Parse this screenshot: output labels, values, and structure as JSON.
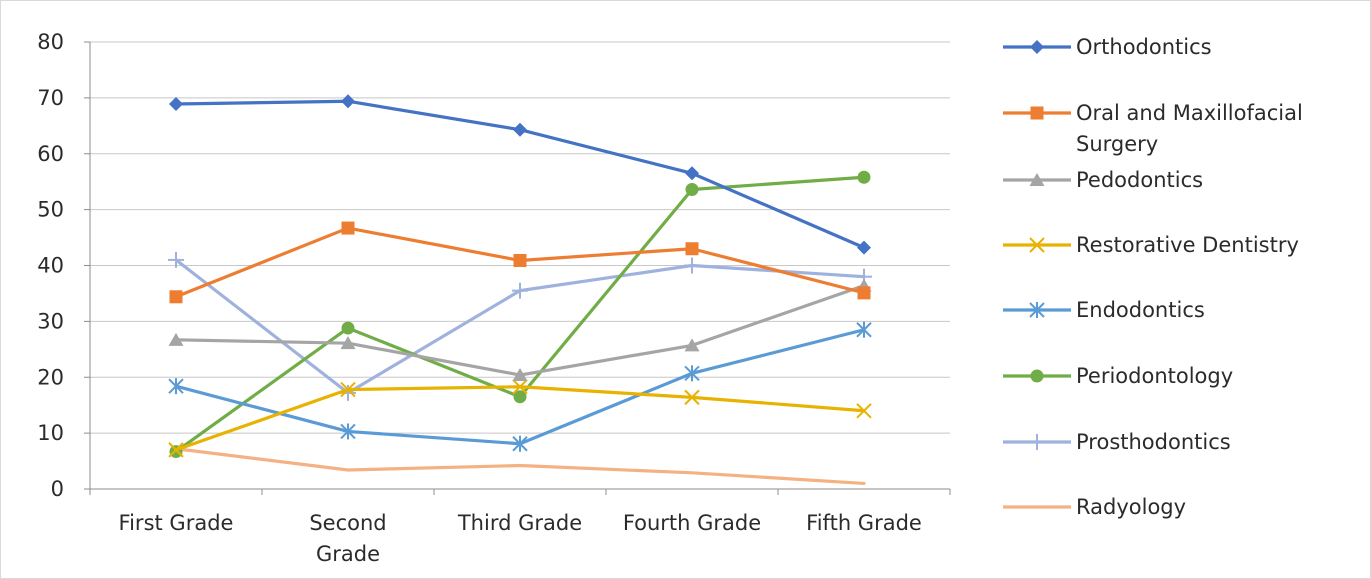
{
  "chart_data": {
    "type": "line",
    "title": "",
    "xlabel": "",
    "ylabel": "",
    "categories": [
      "First Grade",
      "Second Grade",
      "Third Grade",
      "Fourth Grade",
      "Fifth Grade"
    ],
    "category_lines": [
      [
        "First Grade"
      ],
      [
        "Second",
        "Grade"
      ],
      [
        "Third Grade"
      ],
      [
        "Fourth Grade"
      ],
      [
        "Fifth Grade"
      ]
    ],
    "ylim": [
      0,
      80
    ],
    "y_ticks": [
      "0",
      "10",
      "20",
      "30",
      "40",
      "50",
      "60",
      "70",
      "80"
    ],
    "grid": true,
    "legend_position": "right",
    "series": [
      {
        "name": "Orthodontics",
        "name_lines": [
          "Orthodontics"
        ],
        "color": "#4472c4",
        "marker": "diamond",
        "values": [
          68.9,
          69.4,
          64.3,
          56.5,
          43.2
        ]
      },
      {
        "name": "Oral and Maxillofacial Surgery",
        "name_lines": [
          "Oral and Maxillofacial",
          "Surgery"
        ],
        "color": "#ed7d31",
        "marker": "square",
        "values": [
          34.4,
          46.7,
          40.9,
          43.0,
          35.1
        ]
      },
      {
        "name": "Pedodontics",
        "name_lines": [
          "Pedodontics"
        ],
        "color": "#a5a5a5",
        "marker": "triangle",
        "values": [
          26.7,
          26.1,
          20.4,
          25.7,
          36.4
        ]
      },
      {
        "name": "Restorative Dentistry",
        "name_lines": [
          "Restorative Dentistry"
        ],
        "color": "#e8b200",
        "marker": "x",
        "values": [
          7.0,
          17.8,
          18.3,
          16.4,
          14.0
        ]
      },
      {
        "name": "Endodontics",
        "name_lines": [
          "Endodontics"
        ],
        "color": "#5b9bd5",
        "marker": "asterisk",
        "values": [
          18.4,
          10.3,
          8.1,
          20.7,
          28.5
        ]
      },
      {
        "name": "Periodontology",
        "name_lines": [
          "Periodontology"
        ],
        "color": "#70ad47",
        "marker": "circle",
        "values": [
          6.7,
          28.8,
          16.5,
          53.6,
          55.8
        ]
      },
      {
        "name": "Prosthodontics",
        "name_lines": [
          "Prosthodontics"
        ],
        "color": "#9fb2de",
        "marker": "plus",
        "values": [
          41.0,
          17.2,
          35.5,
          40.0,
          38.0
        ]
      },
      {
        "name": "Radyology",
        "name_lines": [
          "Radyology"
        ],
        "color": "#f4b183",
        "marker": "none",
        "values": [
          7.2,
          3.4,
          4.2,
          2.9,
          1.0
        ]
      }
    ]
  }
}
